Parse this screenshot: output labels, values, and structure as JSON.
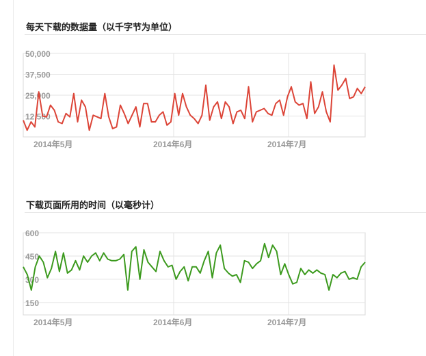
{
  "sections": [
    {
      "title": "每天下载的数据量（以千字节为单位）"
    },
    {
      "title": "下载页面所用的时间（以毫秒计）"
    }
  ],
  "chart_data": [
    {
      "type": "line",
      "title": "每天下载的数据量（以千字节为单位）",
      "color": "#dc4437",
      "ylim": [
        0,
        50000
      ],
      "y_ticks": [
        "50,000",
        "37,500",
        "25,000",
        "12,500"
      ],
      "y_tick_values": [
        50000,
        37500,
        25000,
        12500
      ],
      "x_ticks": [
        "2014年5月",
        "2014年6月",
        "2014年7月"
      ],
      "x_tick_index": [
        4,
        35,
        65
      ],
      "series": [
        {
          "values": [
            10000,
            4000,
            9000,
            6000,
            27000,
            12500,
            12000,
            19000,
            16000,
            9000,
            8000,
            14000,
            12000,
            26000,
            9000,
            22000,
            18000,
            4000,
            13000,
            12000,
            11000,
            26000,
            12000,
            5000,
            6000,
            19000,
            14000,
            8000,
            13000,
            18000,
            6000,
            20000,
            20000,
            9000,
            9000,
            13000,
            15000,
            7000,
            9000,
            26000,
            13000,
            26000,
            18000,
            13000,
            11000,
            8000,
            13000,
            31000,
            10000,
            18000,
            21000,
            11000,
            21000,
            18000,
            8000,
            15000,
            16000,
            11000,
            30000,
            9000,
            15000,
            16000,
            17000,
            14000,
            13000,
            20000,
            22000,
            13000,
            24000,
            30000,
            21000,
            19000,
            20000,
            11000,
            33000,
            14000,
            18000,
            27000,
            15000,
            9000,
            43000,
            28000,
            31000,
            35000,
            23000,
            24000,
            29000,
            26000,
            30000
          ]
        }
      ]
    },
    {
      "type": "line",
      "title": "下载页面所用的时间（以毫秒计）",
      "color": "#3c9a1e",
      "ylim": [
        70,
        600
      ],
      "y_ticks": [
        "600",
        "450",
        "300",
        "150"
      ],
      "y_tick_values": [
        600,
        450,
        300,
        150
      ],
      "x_ticks": [
        "2014年5月",
        "2014年6月",
        "2014年7月"
      ],
      "x_tick_index": [
        4,
        35,
        65
      ],
      "series": [
        {
          "values": [
            380,
            330,
            230,
            380,
            450,
            410,
            310,
            370,
            480,
            350,
            470,
            340,
            360,
            420,
            360,
            450,
            410,
            450,
            470,
            420,
            470,
            430,
            420,
            420,
            430,
            460,
            230,
            480,
            510,
            300,
            490,
            410,
            380,
            350,
            480,
            420,
            380,
            390,
            300,
            350,
            380,
            290,
            380,
            380,
            340,
            420,
            480,
            310,
            470,
            520,
            370,
            340,
            320,
            330,
            280,
            420,
            410,
            370,
            400,
            420,
            530,
            440,
            520,
            480,
            330,
            400,
            330,
            270,
            280,
            370,
            330,
            360,
            340,
            360,
            340,
            330,
            230,
            330,
            310,
            340,
            350,
            300,
            310,
            300,
            380,
            410
          ]
        }
      ]
    }
  ]
}
